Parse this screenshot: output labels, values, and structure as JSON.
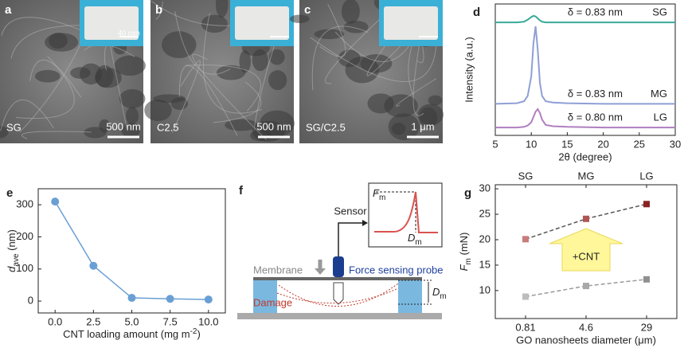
{
  "images": [
    {
      "panel": "a",
      "label": "SG",
      "scale_bar": "500 nm",
      "inset_scale": "40 mm"
    },
    {
      "panel": "b",
      "label": "C2.5",
      "scale_bar": "500 nm"
    },
    {
      "panel": "c",
      "label": "SG/C2.5",
      "scale_bar": "1 μm"
    }
  ],
  "diagram": {
    "panel": "f",
    "sensor": "Sensor",
    "inset_y": [
      {
        "text": "F",
        "italic": true
      },
      {
        "text": "m",
        "sub": true
      }
    ],
    "inset_x": [
      {
        "text": "D",
        "italic": true
      },
      {
        "text": "m",
        "sub": true
      }
    ],
    "membrane": "Membrane",
    "probe": "Force sensing probe",
    "damage": "Damage",
    "depth": [
      {
        "text": "D",
        "italic": true
      },
      {
        "text": "m",
        "sub": true
      }
    ]
  },
  "chart_data": [
    {
      "type": "line",
      "panel": "d",
      "xlabel": "2θ (degree)",
      "ylabel": "Intensity (a.u.)",
      "x": [
        5,
        8,
        9,
        9.5,
        10,
        10.3,
        10.6,
        10.9,
        11.2,
        11.5,
        12,
        13,
        15,
        20,
        25,
        30
      ],
      "series": [
        {
          "name": "SG",
          "color": "#3aa99a",
          "values": [
            86,
            86,
            86.5,
            88,
            90,
            91,
            90.5,
            89,
            87.5,
            86.5,
            86,
            86,
            86,
            86,
            86,
            86
          ]
        },
        {
          "name": "MG",
          "color": "#8f9fd6",
          "values": [
            24,
            24.5,
            26,
            30,
            45,
            70,
            83,
            65,
            40,
            30,
            26,
            25,
            24.5,
            24,
            24,
            24
          ]
        },
        {
          "name": "LG",
          "color": "#b07fc0",
          "values": [
            6,
            6,
            6.5,
            7.5,
            10,
            14,
            18,
            20,
            17,
            12,
            8,
            7,
            6.5,
            6,
            6,
            6
          ]
        }
      ],
      "annotations": [
        "δ = 0.83 nm",
        "δ = 0.83 nm",
        "δ = 0.80 nm"
      ],
      "xlim": [
        5,
        30
      ],
      "xticks": [
        5,
        10,
        15,
        20,
        25,
        30
      ],
      "ylim": [
        0,
        100
      ]
    },
    {
      "type": "line",
      "panel": "e",
      "xlabel": [
        {
          "text": "CNT loading amount (mg m"
        },
        {
          "text": "-2",
          "sup": true
        },
        {
          "text": ")"
        }
      ],
      "ylabel": [
        {
          "text": "d",
          "italic": true
        },
        {
          "text": "ave",
          "sub": true
        },
        {
          "text": " (nm)"
        }
      ],
      "x": [
        0,
        2.5,
        5,
        7.5,
        10
      ],
      "values": [
        310,
        110,
        10,
        7,
        5
      ],
      "color": "#6a9fd4",
      "markers": "circle",
      "xlim": [
        -1.1,
        11.1
      ],
      "xticks": [
        {
          "value": 0,
          "label": "0.0"
        },
        {
          "value": 2.5,
          "label": "2.5"
        },
        {
          "value": 5,
          "label": "5.0"
        },
        {
          "value": 7.5,
          "label": "7.5"
        },
        {
          "value": 10,
          "label": "10.0"
        }
      ],
      "ylim": [
        -37,
        350
      ],
      "yticks": [
        0,
        100,
        200,
        300
      ]
    },
    {
      "type": "line",
      "panel": "g",
      "xlabel": "GO nanosheets diameter (μm)",
      "ylabel": [
        {
          "text": "F",
          "italic": true
        },
        {
          "text": "m",
          "sub": true
        },
        {
          "text": " (mN)"
        }
      ],
      "categories": [
        "0.81",
        "4.6",
        "29"
      ],
      "top_categories": [
        "SG",
        "MG",
        "LG"
      ],
      "series": [
        {
          "color": "#555555",
          "marker_colors": [
            "#c97c7c",
            "#b05555",
            "#8b2222"
          ],
          "values": [
            20.1,
            24.1,
            27.0
          ]
        },
        {
          "color": "#999999",
          "marker_colors": [
            "#bdbdbd",
            "#a8a8a8",
            "#909090"
          ],
          "values": [
            8.8,
            10.9,
            12.2
          ]
        }
      ],
      "markers": "square",
      "dashed": true,
      "note": "+CNT",
      "ylim": [
        4.5,
        30.8
      ],
      "yticks": [
        10,
        15,
        20,
        25,
        30
      ]
    }
  ]
}
